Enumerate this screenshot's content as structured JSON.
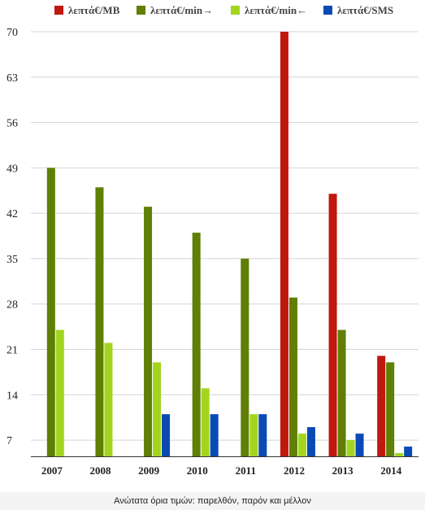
{
  "caption": "Ανώτατα όρια τιμών: παρελθόν, παρόν και μέλλον",
  "chart_data": {
    "type": "bar",
    "categories": [
      "2007",
      "2008",
      "2009",
      "2010",
      "2011",
      "2012",
      "2013",
      "2014"
    ],
    "series": [
      {
        "name": "λεπτά€/MB",
        "color": "#c0180c",
        "values": [
          null,
          null,
          null,
          null,
          null,
          70,
          45,
          20
        ]
      },
      {
        "name": "λεπτά€/min→",
        "color": "#5f7f05",
        "values": [
          49,
          46,
          43,
          39,
          35,
          29,
          24,
          19
        ]
      },
      {
        "name": "λεπτά€/min←",
        "color": "#a3d51f",
        "values": [
          24,
          22,
          19,
          15,
          11,
          8,
          7,
          5
        ]
      },
      {
        "name": "λεπτά€/SMS",
        "color": "#0a4ab5",
        "values": [
          null,
          null,
          11,
          11,
          11,
          9,
          8,
          6
        ]
      }
    ],
    "yticks": [
      "7",
      "14",
      "21",
      "28",
      "35",
      "42",
      "49",
      "56",
      "63",
      "70"
    ],
    "ylim": [
      4.5,
      70
    ],
    "legend_position": "top",
    "grid": true
  }
}
